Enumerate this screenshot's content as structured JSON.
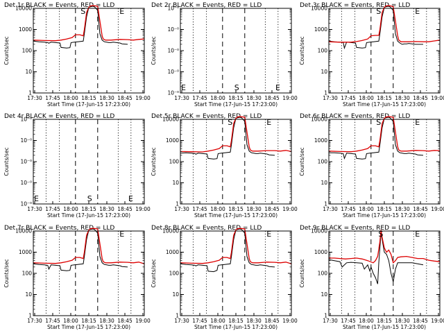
{
  "figure": {
    "xlabel": "Start Time (17-Jun-15 17:23:00)",
    "ylabel": "Counts/sec",
    "x_tick_labels": [
      "17:30",
      "17:45",
      "18:00",
      "18:15",
      "18:30",
      "18:45",
      "19:00"
    ],
    "colors": {
      "events": "#000000",
      "lld": "#dd0000",
      "axes": "#000000"
    }
  },
  "chart_data": [
    {
      "type": "line",
      "title": "Det 1r BLACK = Events, RED = LLD",
      "xlim": [
        0,
        100
      ],
      "ylim_log10": [
        0,
        4
      ],
      "y_tick_labels": [
        "1",
        "10",
        "100",
        "1000",
        "10000"
      ],
      "marker_labels": [
        {
          "text": "S",
          "x": 42
        },
        {
          "text": "E",
          "x": 77
        }
      ],
      "series": [
        {
          "name": "Events",
          "color": "#000000",
          "x": [
            0,
            5,
            10,
            13,
            14,
            16,
            20,
            24,
            25,
            30,
            33,
            34,
            37,
            40,
            45,
            46,
            48,
            50,
            53,
            55,
            58,
            60,
            62,
            64,
            66,
            68,
            70,
            72,
            75,
            78,
            80,
            85
          ],
          "y": [
            2.45,
            2.42,
            2.4,
            2.38,
            2.35,
            2.4,
            2.38,
            2.36,
            2.15,
            2.12,
            2.14,
            2.38,
            2.4,
            2.42,
            2.45,
            2.8,
            3.6,
            4.05,
            4.1,
            4.08,
            3.9,
            2.8,
            2.5,
            2.42,
            2.4,
            2.38,
            2.38,
            2.4,
            2.38,
            2.36,
            2.32,
            2.3
          ]
        },
        {
          "name": "LLD",
          "color": "#dd0000",
          "x": [
            0,
            10,
            20,
            25,
            30,
            35,
            38,
            42,
            45,
            46,
            48,
            50,
            52,
            55,
            58,
            60,
            62,
            63,
            65,
            70,
            78,
            85,
            90,
            95,
            100
          ],
          "y": [
            2.5,
            2.48,
            2.47,
            2.5,
            2.55,
            2.62,
            2.75,
            2.75,
            2.7,
            3.0,
            3.8,
            4.05,
            4.12,
            4.12,
            4.1,
            3.4,
            2.7,
            2.55,
            2.5,
            2.5,
            2.53,
            2.52,
            2.5,
            2.53,
            2.55
          ]
        }
      ]
    },
    {
      "type": "line",
      "title": "Det 2r BLACK = Events, RED = LLD",
      "xlim": [
        0,
        100
      ],
      "ylim_log10": [
        0,
        4
      ],
      "y_tick_labels": [
        "10⁻⁰",
        "10⁻⁰",
        "10⁻⁰",
        "10⁻⁰",
        "10⁻⁰"
      ],
      "marker_labels": [
        {
          "text": "E",
          "x": 0
        },
        {
          "text": "S",
          "x": 48
        },
        {
          "text": "E",
          "x": 85
        }
      ],
      "series": []
    },
    {
      "type": "line",
      "title": "Det 3r BLACK = Events, RED = LLD",
      "xlim": [
        0,
        100
      ],
      "ylim_log10": [
        0,
        4
      ],
      "y_tick_labels": [
        "1",
        "10",
        "100",
        "1000",
        "10000"
      ],
      "marker_labels": [
        {
          "text": "S",
          "x": 42
        },
        {
          "text": "E",
          "x": 77
        }
      ],
      "series": [
        {
          "name": "Events",
          "color": "#000000",
          "x": [
            0,
            5,
            10,
            13,
            14,
            16,
            20,
            24,
            25,
            30,
            33,
            34,
            37,
            40,
            45,
            46,
            48,
            50,
            53,
            55,
            58,
            60,
            62,
            64,
            66,
            68,
            70,
            72,
            75,
            78,
            80,
            85
          ],
          "y": [
            2.45,
            2.42,
            2.4,
            2.38,
            2.12,
            2.4,
            2.38,
            2.36,
            2.15,
            2.12,
            2.14,
            2.38,
            2.4,
            2.42,
            2.45,
            2.8,
            3.6,
            4.05,
            4.1,
            4.08,
            3.9,
            2.8,
            2.45,
            2.36,
            2.3,
            2.32,
            2.32,
            2.34,
            2.32,
            2.3,
            2.3,
            2.3
          ]
        },
        {
          "name": "LLD",
          "color": "#dd0000",
          "x": [
            0,
            10,
            20,
            25,
            30,
            35,
            38,
            42,
            45,
            46,
            48,
            50,
            52,
            55,
            58,
            60,
            62,
            63,
            65,
            70,
            78,
            85,
            90,
            95,
            100
          ],
          "y": [
            2.42,
            2.4,
            2.4,
            2.43,
            2.48,
            2.55,
            2.7,
            2.72,
            2.72,
            3.0,
            3.8,
            4.05,
            4.12,
            4.12,
            4.08,
            3.4,
            2.7,
            2.5,
            2.42,
            2.42,
            2.43,
            2.42,
            2.42,
            2.46,
            2.5
          ]
        }
      ]
    },
    {
      "type": "line",
      "title": "Det 4r BLACK = Events, RED = LLD",
      "xlim": [
        0,
        100
      ],
      "ylim_log10": [
        0,
        4
      ],
      "y_tick_labels": [
        "10⁻⁰",
        "10⁻⁰",
        "10⁻⁰",
        "10⁻⁰",
        "10⁻⁰"
      ],
      "marker_labels": [
        {
          "text": "E",
          "x": 0
        },
        {
          "text": "S",
          "x": 48
        },
        {
          "text": "E",
          "x": 85
        }
      ],
      "series": []
    },
    {
      "type": "line",
      "title": "Det 5r BLACK = Events, RED = LLD",
      "xlim": [
        0,
        100
      ],
      "ylim_log10": [
        0,
        4
      ],
      "y_tick_labels": [
        "1",
        "10",
        "100",
        "1000",
        "10000"
      ],
      "marker_labels": [
        {
          "text": "S",
          "x": 42
        },
        {
          "text": "E",
          "x": 77
        }
      ],
      "series": [
        {
          "name": "Events",
          "color": "#000000",
          "x": [
            0,
            5,
            10,
            13,
            14,
            16,
            20,
            24,
            25,
            30,
            33,
            34,
            37,
            40,
            45,
            46,
            48,
            50,
            53,
            55,
            58,
            60,
            62,
            64,
            66,
            68,
            70,
            72,
            75,
            78,
            80,
            85
          ],
          "y": [
            2.4,
            2.42,
            2.4,
            2.38,
            2.35,
            2.4,
            2.38,
            2.36,
            2.15,
            2.12,
            2.14,
            2.38,
            2.4,
            2.42,
            2.45,
            2.8,
            3.6,
            4.05,
            4.1,
            4.08,
            3.9,
            2.8,
            2.5,
            2.42,
            2.4,
            2.38,
            2.38,
            2.4,
            2.38,
            2.36,
            2.32,
            2.3
          ]
        },
        {
          "name": "LLD",
          "color": "#dd0000",
          "x": [
            0,
            10,
            20,
            25,
            30,
            35,
            38,
            42,
            45,
            46,
            48,
            50,
            52,
            55,
            58,
            60,
            62,
            63,
            65,
            70,
            78,
            85,
            90,
            95,
            100
          ],
          "y": [
            2.48,
            2.47,
            2.46,
            2.5,
            2.55,
            2.62,
            2.75,
            2.75,
            2.7,
            3.0,
            3.8,
            4.05,
            4.12,
            4.12,
            4.1,
            3.4,
            2.7,
            2.55,
            2.5,
            2.5,
            2.52,
            2.52,
            2.5,
            2.53,
            2.48
          ]
        }
      ]
    },
    {
      "type": "line",
      "title": "Det 6r BLACK = Events, RED = LLD",
      "xlim": [
        0,
        100
      ],
      "ylim_log10": [
        0,
        4
      ],
      "y_tick_labels": [
        "1",
        "10",
        "100",
        "1000",
        "10000"
      ],
      "marker_labels": [
        {
          "text": "S",
          "x": 42
        },
        {
          "text": "E",
          "x": 77
        }
      ],
      "series": [
        {
          "name": "Events",
          "color": "#000000",
          "x": [
            0,
            5,
            10,
            13,
            14,
            16,
            20,
            24,
            25,
            30,
            33,
            34,
            37,
            40,
            45,
            46,
            48,
            50,
            53,
            55,
            58,
            60,
            62,
            64,
            66,
            68,
            70,
            72,
            75,
            78,
            80,
            85
          ],
          "y": [
            2.42,
            2.42,
            2.4,
            2.38,
            2.15,
            2.4,
            2.38,
            2.36,
            2.15,
            2.12,
            2.14,
            2.38,
            2.4,
            2.42,
            2.45,
            2.8,
            3.6,
            4.05,
            4.1,
            4.08,
            3.9,
            2.8,
            2.5,
            2.42,
            2.4,
            2.38,
            2.38,
            2.4,
            2.38,
            2.36,
            2.32,
            2.3
          ]
        },
        {
          "name": "LLD",
          "color": "#dd0000",
          "x": [
            0,
            10,
            20,
            25,
            30,
            35,
            38,
            42,
            45,
            46,
            48,
            50,
            52,
            55,
            58,
            60,
            62,
            63,
            65,
            70,
            78,
            85,
            90,
            95,
            100
          ],
          "y": [
            2.5,
            2.48,
            2.47,
            2.5,
            2.55,
            2.62,
            2.75,
            2.75,
            2.7,
            3.0,
            3.8,
            4.05,
            4.12,
            4.12,
            4.1,
            3.4,
            2.7,
            2.55,
            2.5,
            2.5,
            2.53,
            2.52,
            2.5,
            2.53,
            2.52
          ]
        }
      ]
    },
    {
      "type": "line",
      "title": "Det 7r BLACK = Events, RED = LLD",
      "xlim": [
        0,
        100
      ],
      "ylim_log10": [
        0,
        4
      ],
      "y_tick_labels": [
        "1",
        "10",
        "100",
        "1000",
        "10000"
      ],
      "marker_labels": [
        {
          "text": "E",
          "x": 77
        }
      ],
      "series": [
        {
          "name": "Events",
          "color": "#000000",
          "x": [
            0,
            5,
            10,
            13,
            14,
            16,
            20,
            24,
            25,
            30,
            33,
            34,
            37,
            40,
            45,
            46,
            48,
            50,
            53,
            55,
            58,
            60,
            62,
            64,
            66,
            68,
            70,
            72,
            75,
            78,
            80,
            85
          ],
          "y": [
            2.45,
            2.42,
            2.4,
            2.38,
            2.2,
            2.4,
            2.38,
            2.36,
            2.15,
            2.12,
            2.14,
            2.38,
            2.4,
            2.42,
            2.45,
            2.8,
            3.6,
            4.05,
            4.1,
            4.08,
            3.9,
            2.8,
            2.5,
            2.42,
            2.4,
            2.38,
            2.38,
            2.4,
            2.38,
            2.36,
            2.32,
            2.3
          ]
        },
        {
          "name": "LLD",
          "color": "#dd0000",
          "x": [
            0,
            10,
            20,
            25,
            30,
            35,
            38,
            42,
            45,
            46,
            48,
            50,
            52,
            55,
            58,
            60,
            62,
            63,
            65,
            70,
            78,
            85,
            90,
            95,
            100
          ],
          "y": [
            2.5,
            2.48,
            2.47,
            2.5,
            2.55,
            2.62,
            2.75,
            2.75,
            2.7,
            3.0,
            3.8,
            4.05,
            4.12,
            4.12,
            4.1,
            3.4,
            2.7,
            2.55,
            2.5,
            2.5,
            2.53,
            2.52,
            2.5,
            2.53,
            2.45
          ]
        }
      ]
    },
    {
      "type": "line",
      "title": "Det 8r BLACK = Events, RED = LLD",
      "xlim": [
        0,
        100
      ],
      "ylim_log10": [
        0,
        4
      ],
      "y_tick_labels": [
        "1",
        "10",
        "100",
        "1000",
        "10000"
      ],
      "marker_labels": [
        {
          "text": "E",
          "x": 77
        }
      ],
      "series": [
        {
          "name": "Events",
          "color": "#000000",
          "x": [
            0,
            5,
            10,
            13,
            14,
            16,
            20,
            24,
            25,
            30,
            33,
            34,
            37,
            40,
            45,
            46,
            48,
            50,
            53,
            55,
            58,
            60,
            62,
            64,
            66,
            68,
            70,
            72,
            75,
            78,
            80,
            85
          ],
          "y": [
            2.45,
            2.42,
            2.4,
            2.38,
            2.35,
            2.4,
            2.38,
            2.36,
            2.1,
            2.08,
            2.14,
            2.38,
            2.4,
            2.42,
            2.45,
            2.8,
            3.6,
            4.05,
            4.1,
            4.08,
            3.9,
            2.8,
            2.5,
            2.42,
            2.4,
            2.38,
            2.38,
            2.4,
            2.38,
            2.36,
            2.32,
            2.3
          ]
        },
        {
          "name": "LLD",
          "color": "#dd0000",
          "x": [
            0,
            10,
            20,
            25,
            30,
            35,
            38,
            42,
            45,
            46,
            48,
            50,
            52,
            55,
            58,
            60,
            62,
            63,
            65,
            70,
            78,
            85,
            90,
            95,
            100
          ],
          "y": [
            2.5,
            2.48,
            2.47,
            2.5,
            2.55,
            2.62,
            2.75,
            2.75,
            2.7,
            3.0,
            3.8,
            4.05,
            4.12,
            4.12,
            4.1,
            3.4,
            2.7,
            2.55,
            2.5,
            2.5,
            2.53,
            2.52,
            2.5,
            2.53,
            2.45
          ]
        }
      ]
    },
    {
      "type": "line",
      "title": "Det 9r BLACK = Events, RED = LLD",
      "xlim": [
        0,
        100
      ],
      "ylim_log10": [
        0,
        4
      ],
      "y_tick_labels": [
        "1",
        "10",
        "100",
        "1000",
        "10000"
      ],
      "marker_labels": [
        {
          "text": "S",
          "x": 44
        },
        {
          "text": "E",
          "x": 77
        }
      ],
      "series": [
        {
          "name": "Events",
          "color": "#000000",
          "x": [
            0,
            5,
            10,
            12,
            16,
            20,
            25,
            30,
            32,
            35,
            37,
            38,
            40,
            42,
            44,
            45,
            46,
            47,
            48,
            50,
            52,
            54,
            56,
            58,
            60,
            62,
            65,
            70,
            75,
            80,
            85
          ],
          "y": [
            2.65,
            2.6,
            2.55,
            2.3,
            2.5,
            2.52,
            2.5,
            2.48,
            2.2,
            2.4,
            2.1,
            2.3,
            2.0,
            1.8,
            1.5,
            2.5,
            3.2,
            3.9,
            3.6,
            3.0,
            2.9,
            2.6,
            2.0,
            1.6,
            2.2,
            2.5,
            2.5,
            2.5,
            2.5,
            2.45,
            2.4
          ]
        },
        {
          "name": "LLD",
          "color": "#dd0000",
          "x": [
            0,
            5,
            10,
            15,
            20,
            25,
            30,
            35,
            40,
            42,
            44,
            46,
            47,
            48,
            50,
            52,
            54,
            56,
            58,
            60,
            62,
            65,
            70,
            75,
            80,
            85,
            90,
            95,
            100
          ],
          "y": [
            2.72,
            2.72,
            2.7,
            2.68,
            2.7,
            2.72,
            2.68,
            2.6,
            2.5,
            2.6,
            2.8,
            3.5,
            4.05,
            3.7,
            3.2,
            3.0,
            3.1,
            2.9,
            2.5,
            2.6,
            2.75,
            2.78,
            2.8,
            2.75,
            2.7,
            2.7,
            2.62,
            2.58,
            2.55
          ]
        }
      ]
    }
  ]
}
